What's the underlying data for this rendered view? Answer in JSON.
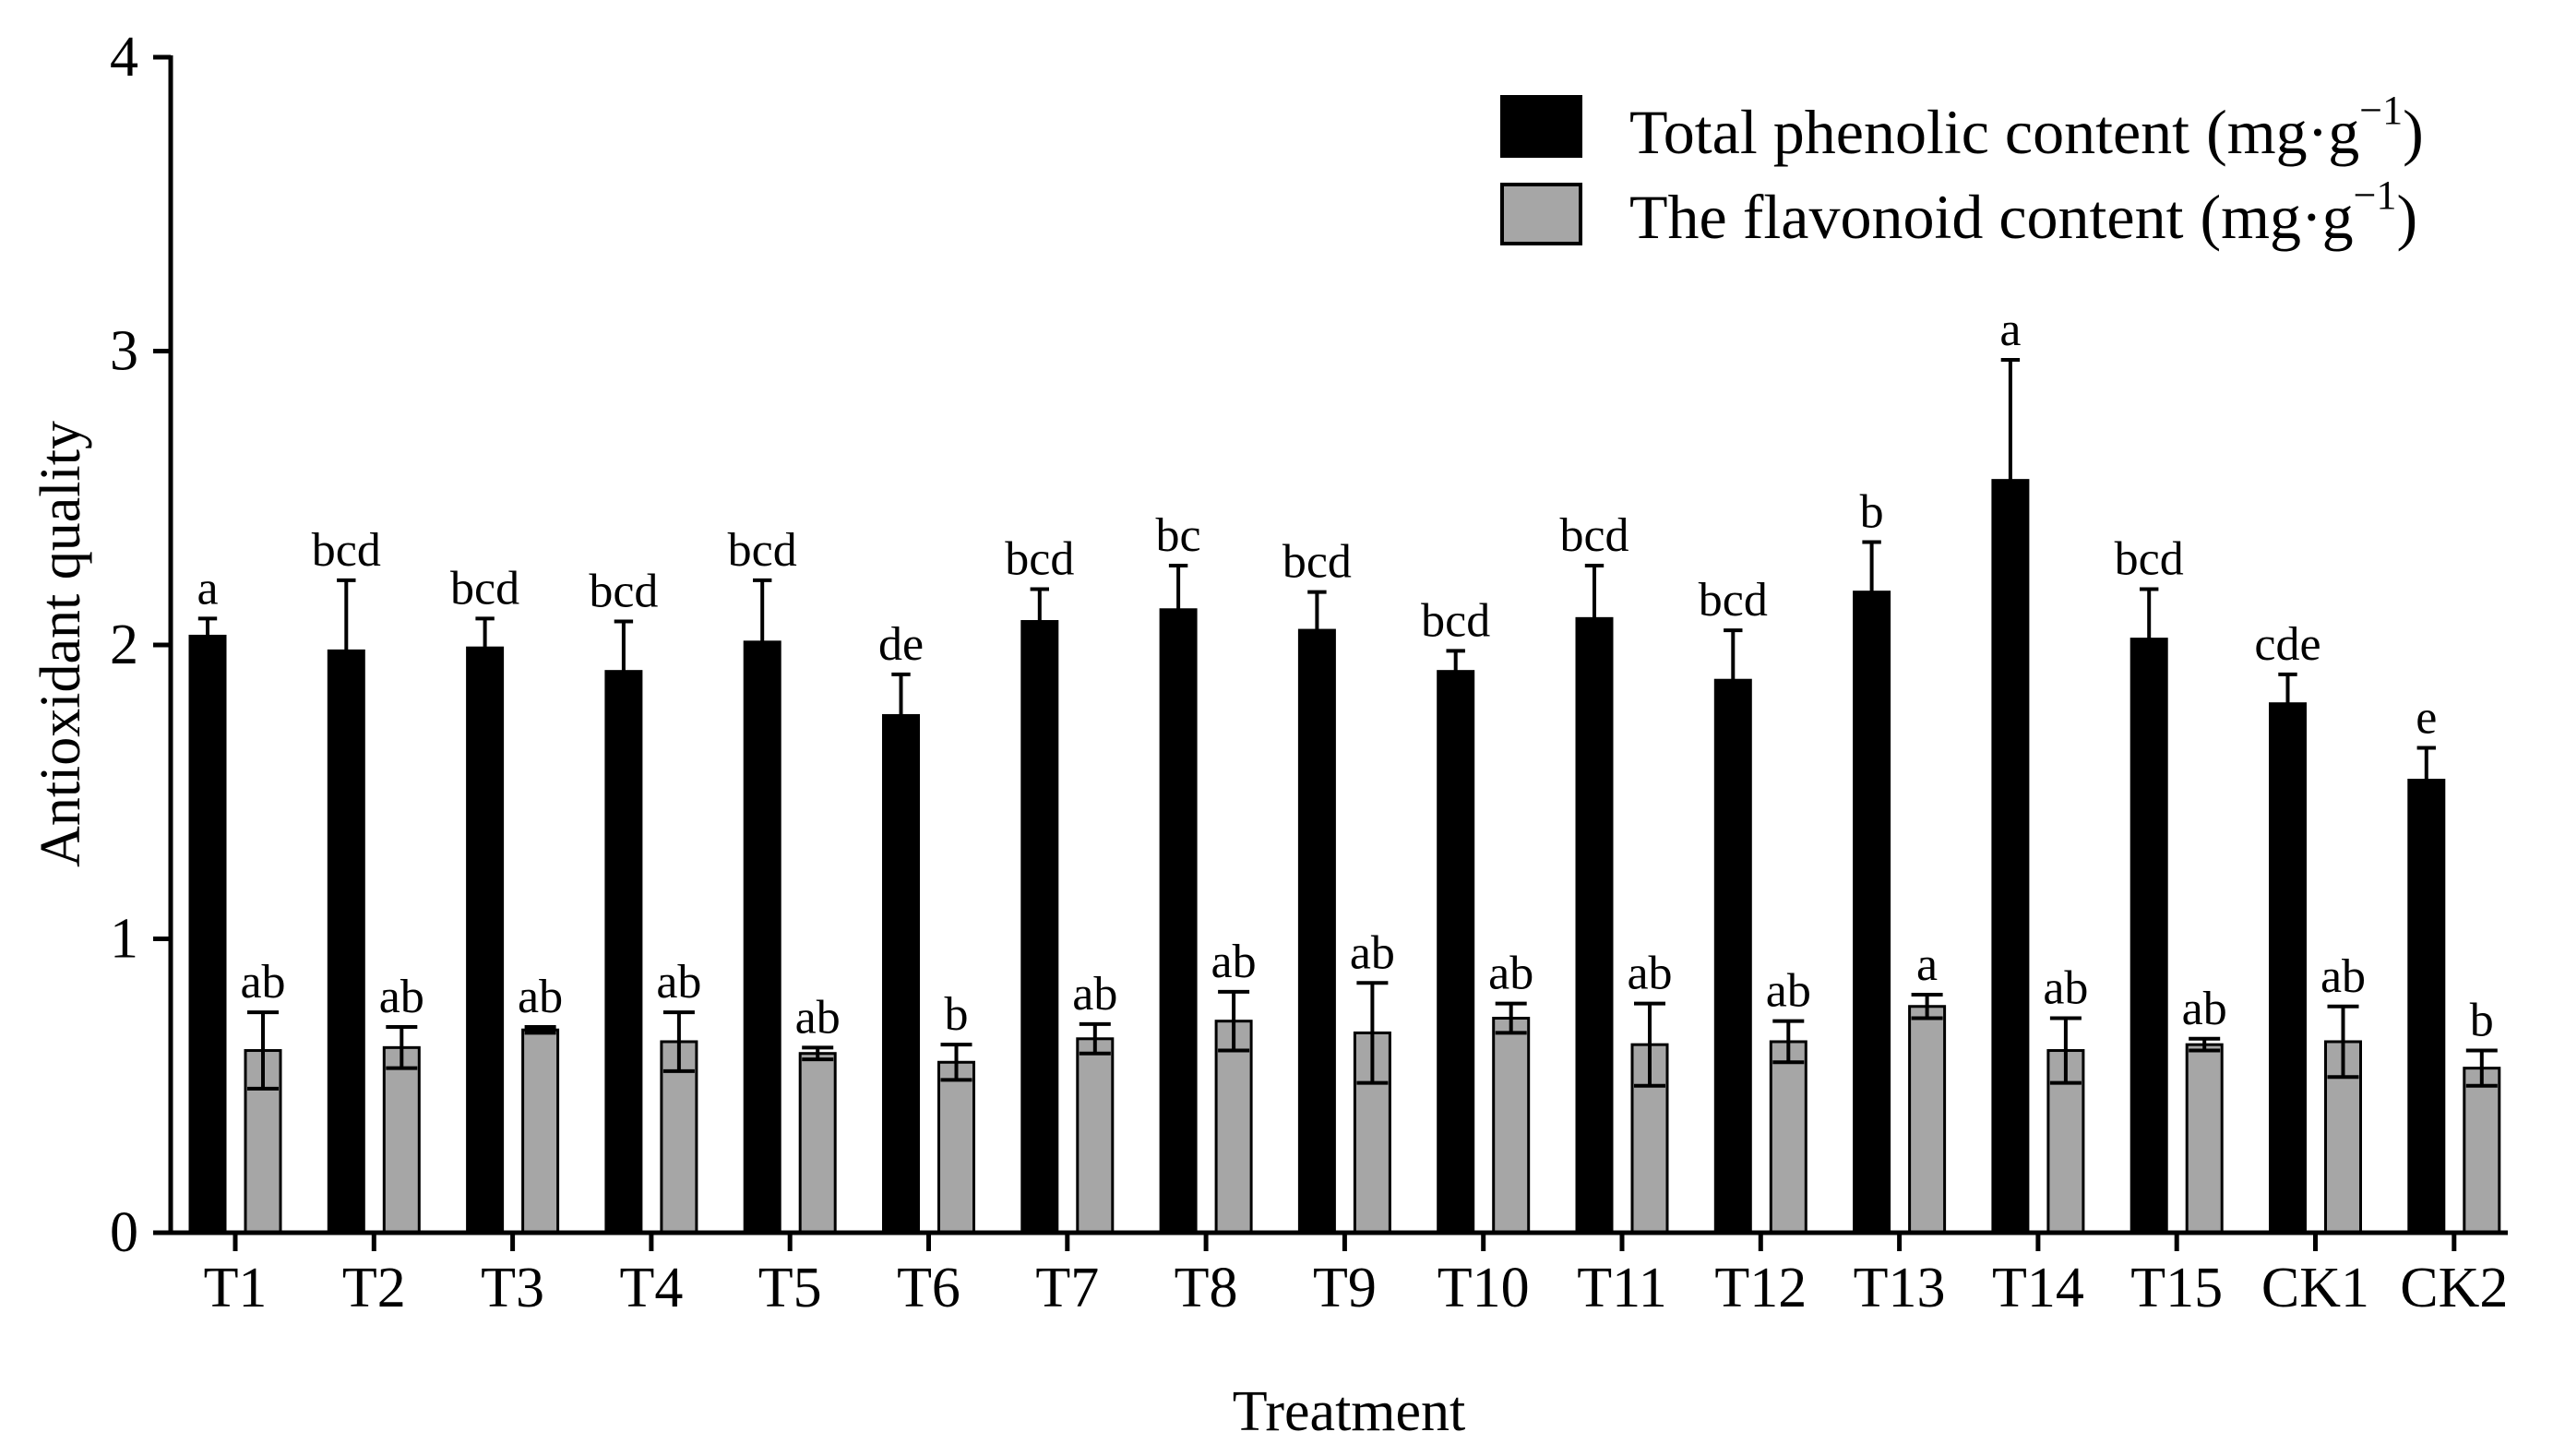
{
  "chart_data": {
    "type": "bar",
    "title": "",
    "xlabel": "Treatment",
    "ylabel": "Antioxidant quality",
    "ylim": [
      0,
      4
    ],
    "yticks": [
      0,
      1,
      2,
      3,
      4
    ],
    "grid": false,
    "legend_position": "top-right",
    "categories": [
      "T1",
      "T2",
      "T3",
      "T4",
      "T5",
      "T6",
      "T7",
      "T8",
      "T9",
      "T10",
      "T11",
      "T12",
      "T13",
      "T14",
      "T15",
      "CK1",
      "CK2"
    ],
    "series": [
      {
        "name": "Total phenolic content",
        "unit_base": "(mg·g",
        "unit_exp": "−1",
        "unit_close": ")",
        "color": "#000000",
        "values": [
          2.03,
          1.98,
          1.99,
          1.91,
          2.01,
          1.76,
          2.08,
          2.12,
          2.05,
          1.91,
          2.09,
          1.88,
          2.18,
          2.56,
          2.02,
          1.8,
          1.54
        ],
        "errors": [
          0.06,
          0.24,
          0.1,
          0.17,
          0.21,
          0.14,
          0.11,
          0.15,
          0.13,
          0.07,
          0.18,
          0.17,
          0.17,
          0.41,
          0.17,
          0.1,
          0.11
        ],
        "labels": [
          "a",
          "bcd",
          "bcd",
          "bcd",
          "bcd",
          "de",
          "bcd",
          "bc",
          "bcd",
          "bcd",
          "bcd",
          "bcd",
          "b",
          "a",
          "bcd",
          "cde",
          "e"
        ]
      },
      {
        "name": "The flavonoid content",
        "unit_base": "(mg·g",
        "unit_exp": "−1",
        "unit_close": ")",
        "color": "#a6a6a6",
        "values": [
          0.62,
          0.63,
          0.69,
          0.65,
          0.61,
          0.58,
          0.66,
          0.72,
          0.68,
          0.73,
          0.64,
          0.65,
          0.77,
          0.62,
          0.64,
          0.65,
          0.56
        ],
        "errors": [
          0.13,
          0.07,
          0.01,
          0.1,
          0.02,
          0.06,
          0.05,
          0.1,
          0.17,
          0.05,
          0.14,
          0.07,
          0.04,
          0.11,
          0.02,
          0.12,
          0.06
        ],
        "labels": [
          "ab",
          "ab",
          "ab",
          "ab",
          "ab",
          "b",
          "ab",
          "ab",
          "ab",
          "ab",
          "ab",
          "ab",
          "a",
          "ab",
          "ab",
          "ab",
          "b"
        ]
      }
    ]
  }
}
